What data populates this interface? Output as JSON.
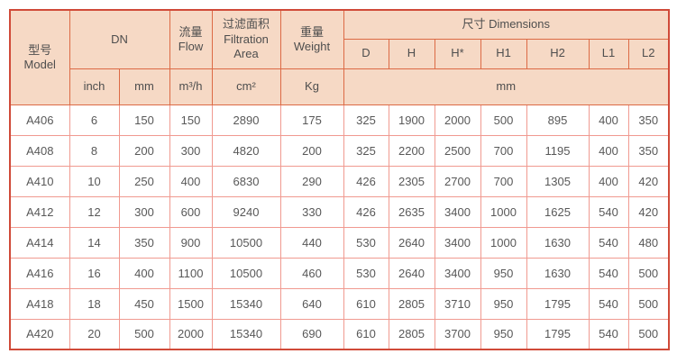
{
  "table": {
    "title": "Filter specification table",
    "colors": {
      "header_bg": "#f6d9c5",
      "header_border": "#dc6a45",
      "body_border": "#f09a90",
      "outer_border": "#d04a38",
      "text": "#4e4e4e"
    },
    "header": {
      "model": "型号\nModel",
      "dn": "DN",
      "flow": "流量\nFlow",
      "filtration_area": "过滤面积\nFiltration\nArea",
      "weight": "重量\nWeight",
      "dimensions": "尺寸 Dimensions",
      "dimension_cols": [
        "D",
        "H",
        "H*",
        "H1",
        "H2",
        "L1",
        "L2"
      ],
      "units": {
        "inch": "inch",
        "mm": "mm",
        "flow": "m³/h",
        "area": "cm²",
        "weight": "Kg",
        "dimensions": "mm"
      }
    },
    "rows": [
      [
        "A406",
        "6",
        "150",
        "150",
        "2890",
        "175",
        "325",
        "1900",
        "2000",
        "500",
        "895",
        "400",
        "350"
      ],
      [
        "A408",
        "8",
        "200",
        "300",
        "4820",
        "200",
        "325",
        "2200",
        "2500",
        "700",
        "1195",
        "400",
        "350"
      ],
      [
        "A410",
        "10",
        "250",
        "400",
        "6830",
        "290",
        "426",
        "2305",
        "2700",
        "700",
        "1305",
        "400",
        "420"
      ],
      [
        "A412",
        "12",
        "300",
        "600",
        "9240",
        "330",
        "426",
        "2635",
        "3400",
        "1000",
        "1625",
        "540",
        "420"
      ],
      [
        "A414",
        "14",
        "350",
        "900",
        "10500",
        "440",
        "530",
        "2640",
        "3400",
        "1000",
        "1630",
        "540",
        "480"
      ],
      [
        "A416",
        "16",
        "400",
        "1100",
        "10500",
        "460",
        "530",
        "2640",
        "3400",
        "950",
        "1630",
        "540",
        "500"
      ],
      [
        "A418",
        "18",
        "450",
        "1500",
        "15340",
        "640",
        "610",
        "2805",
        "3710",
        "950",
        "1795",
        "540",
        "500"
      ],
      [
        "A420",
        "20",
        "500",
        "2000",
        "15340",
        "690",
        "610",
        "2805",
        "3700",
        "950",
        "1795",
        "540",
        "500"
      ]
    ]
  }
}
